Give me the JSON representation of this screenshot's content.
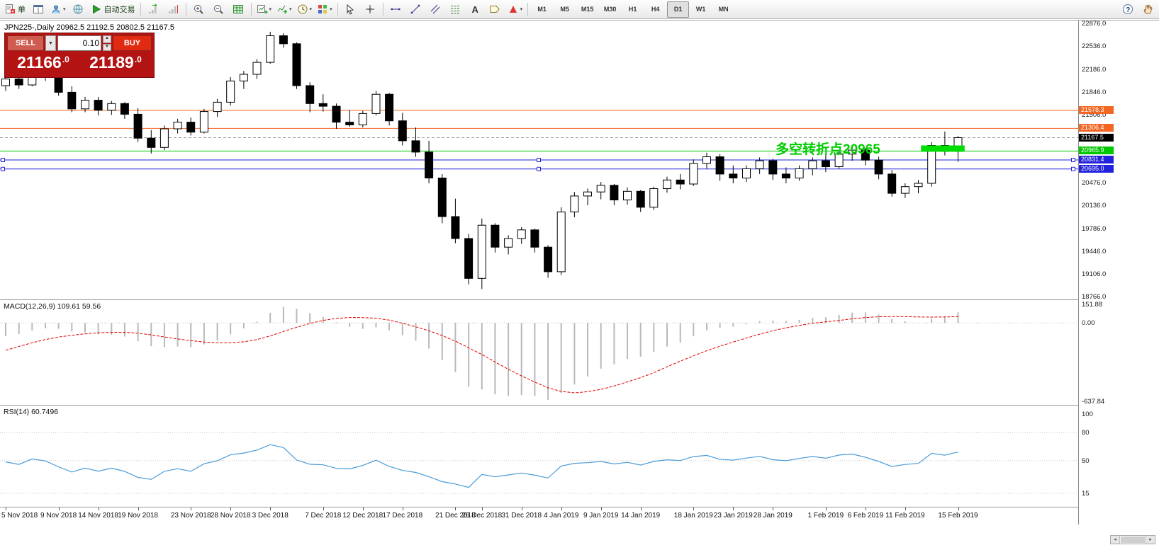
{
  "toolbar": {
    "items": [
      {
        "name": "new-order-button",
        "icon": "doc",
        "label": "单"
      },
      {
        "name": "chart-windows-button",
        "icon": "layout"
      },
      {
        "name": "profile-button",
        "icon": "profile",
        "dropdown": true
      },
      {
        "name": "data-window-button",
        "icon": "globe"
      },
      {
        "name": "autotrading-button",
        "icon": "play",
        "label": "自动交易"
      },
      {
        "sep": true
      },
      {
        "name": "auto-scroll-button",
        "icon": "scroll"
      },
      {
        "name": "chart-shift-button",
        "icon": "shift"
      },
      {
        "sep": true
      },
      {
        "name": "zoom-in-button",
        "icon": "zoomin"
      },
      {
        "name": "zoom-out-button",
        "icon": "zoomout"
      },
      {
        "name": "tile-windows-button",
        "icon": "grid"
      },
      {
        "sep": true
      },
      {
        "name": "new-chart-button",
        "icon": "chartplus",
        "dropdown": true
      },
      {
        "name": "indicators-button",
        "icon": "func",
        "dropdown": true
      },
      {
        "name": "periods-button",
        "icon": "clock",
        "dropdown": true
      },
      {
        "name": "templates-button",
        "icon": "palette",
        "dropdown": true
      },
      {
        "sep": true
      },
      {
        "name": "cursor-button",
        "icon": "cursor"
      },
      {
        "name": "crosshair-button",
        "icon": "crosshair"
      },
      {
        "sep": true
      },
      {
        "name": "horizontal-line-button",
        "icon": "hline"
      },
      {
        "name": "trendline-button",
        "icon": "tline"
      },
      {
        "name": "channel-button",
        "icon": "channel"
      },
      {
        "name": "fibonacci-button",
        "icon": "fibo"
      },
      {
        "name": "text-button",
        "icon": "textA"
      },
      {
        "name": "label-button",
        "icon": "tag"
      },
      {
        "name": "arrows-button",
        "icon": "arrowsym",
        "dropdown": true
      },
      {
        "sep": true
      }
    ],
    "timeframes": [
      "M1",
      "M5",
      "M15",
      "M30",
      "H1",
      "H4",
      "D1",
      "W1",
      "MN"
    ],
    "active_timeframe": "D1",
    "right_items": [
      {
        "name": "help-button",
        "icon": "help"
      },
      {
        "name": "grab-cursor-button",
        "icon": "hand"
      }
    ]
  },
  "chart": {
    "title": "JPN225-,Daily 20962.5 21192.5 20802.5 21167.5",
    "symbol": "JPN225-",
    "period": "Daily"
  },
  "trade_panel": {
    "sell_label": "SELL",
    "buy_label": "BUY",
    "volume": "0.10",
    "sell_price": "21166",
    "sell_frac": ".0",
    "buy_price": "21189",
    "buy_frac": ".0"
  },
  "annotation": {
    "text": "多空转折点20965",
    "color": "#00cc00"
  },
  "y_axis": {
    "max": 22876.0,
    "min": 18766.0,
    "labels": [
      {
        "text": "22876.0",
        "value": 22876.0
      },
      {
        "text": "22536.0",
        "value": 22536.0
      },
      {
        "text": "22186.0",
        "value": 22186.0
      },
      {
        "text": "21846.0",
        "value": 21846.0
      },
      {
        "text": "21506.0",
        "value": 21506.0
      },
      {
        "text": "20476.0",
        "value": 20476.0
      },
      {
        "text": "20136.0",
        "value": 20136.0
      },
      {
        "text": "19786.0",
        "value": 19786.0
      },
      {
        "text": "19446.0",
        "value": 19446.0
      },
      {
        "text": "19106.0",
        "value": 19106.0
      },
      {
        "text": "18766.0",
        "value": 18766.0
      }
    ]
  },
  "x_axis": {
    "ticks": [
      [
        "5 Nov 2018",
        0
      ],
      [
        "9 Nov 2018",
        4
      ],
      [
        "14 Nov 2018",
        7
      ],
      [
        "19 Nov 2018",
        10
      ],
      [
        "23 Nov 2018",
        14
      ],
      [
        "28 Nov 2018",
        17
      ],
      [
        "3 Dec 2018",
        20
      ],
      [
        "7 Dec 2018",
        24
      ],
      [
        "12 Dec 2018",
        27
      ],
      [
        "17 Dec 2018",
        30
      ],
      [
        "21 Dec 2018",
        34
      ],
      [
        "26 Dec 2018",
        36
      ],
      [
        "31 Dec 2018",
        39
      ],
      [
        "4 Jan 2019",
        42
      ],
      [
        "9 Jan 2019",
        45
      ],
      [
        "14 Jan 2019",
        48
      ],
      [
        "18 Jan 2019",
        52
      ],
      [
        "23 Jan 2019",
        55
      ],
      [
        "28 Jan 2019",
        58
      ],
      [
        "1 Feb 2019",
        62
      ],
      [
        "6 Feb 2019",
        65
      ],
      [
        "11 Feb 2019",
        68
      ],
      [
        "15 Feb 2019",
        72
      ]
    ]
  },
  "macd": {
    "label": "MACD(12,26,9) 109.61 59.56",
    "fast": 12,
    "slow": 26,
    "signal": 9,
    "range": [
      -637.84,
      151.88
    ],
    "axis": [
      [
        "151.88",
        151.88
      ],
      [
        "0.00",
        0
      ],
      [
        "-637.84",
        -637.84
      ]
    ]
  },
  "rsi": {
    "label": "RSI(14) 60.7496",
    "period": 14,
    "levels": [
      80,
      50,
      15
    ],
    "axis": [
      [
        "100",
        100
      ],
      [
        "80",
        80
      ],
      [
        "50",
        50
      ],
      [
        "15",
        15
      ]
    ]
  },
  "chart_data": {
    "type": "candlestick",
    "symbol": "JPN225-",
    "timeframe": "Daily",
    "levels": [
      {
        "label": "21578.3",
        "price": 21578.3,
        "color": "#f26522",
        "style": "solid",
        "selected": false
      },
      {
        "label": "21306.4",
        "price": 21306.4,
        "color": "#f26522",
        "style": "solid",
        "selected": false
      },
      {
        "label": "21167.5",
        "price": 21167.5,
        "color": "#000000",
        "style": "dashed",
        "selected": false,
        "role": "bid"
      },
      {
        "label": "20965.9",
        "price": 20965.9,
        "color": "#00c800",
        "style": "solid",
        "selected": false
      },
      {
        "label": "20831.4",
        "price": 20831.4,
        "color": "#2222dd",
        "style": "solid",
        "selected": true
      },
      {
        "label": "20695.0",
        "price": 20695.0,
        "color": "#2222dd",
        "style": "solid",
        "selected": true
      }
    ],
    "rectangle": {
      "from_bar": 69.2,
      "to_bar": 72.5,
      "price_top": 21050,
      "price_bottom": 20955,
      "color": "#00dd00"
    },
    "prehistory_closes": [
      23000,
      22900,
      22800,
      22700,
      22650,
      22600,
      22500,
      22400,
      22350,
      22300,
      22250,
      22150,
      21950,
      21700,
      21450,
      21200,
      21300,
      21450,
      21550,
      21350,
      21250,
      21400,
      21600,
      21800,
      21950,
      22050,
      21920,
      21800,
      21880,
      21960
    ],
    "candles": [
      [
        "2018.11.05",
        21950,
        22120,
        21870,
        22050
      ],
      [
        "2018.11.06",
        22050,
        22090,
        21900,
        21960
      ],
      [
        "2018.11.07",
        21960,
        22200,
        21940,
        22150
      ],
      [
        "2018.11.08",
        22150,
        22210,
        22020,
        22080
      ],
      [
        "2018.11.09",
        22080,
        22100,
        21800,
        21850
      ],
      [
        "2018.11.12",
        21850,
        21940,
        21550,
        21600
      ],
      [
        "2018.11.13",
        21600,
        21780,
        21550,
        21730
      ],
      [
        "2018.11.14",
        21730,
        21780,
        21500,
        21580
      ],
      [
        "2018.11.15",
        21580,
        21720,
        21510,
        21680
      ],
      [
        "2018.11.16",
        21680,
        21700,
        21450,
        21520
      ],
      [
        "2018.11.19",
        21520,
        21610,
        21100,
        21160
      ],
      [
        "2018.11.20",
        21160,
        21280,
        20930,
        21020
      ],
      [
        "2018.11.21",
        21020,
        21350,
        20980,
        21300
      ],
      [
        "2018.11.22",
        21300,
        21450,
        21230,
        21400
      ],
      [
        "2018.11.23",
        21400,
        21470,
        21200,
        21250
      ],
      [
        "2018.11.26",
        21250,
        21600,
        21230,
        21560
      ],
      [
        "2018.11.27",
        21560,
        21750,
        21480,
        21700
      ],
      [
        "2018.11.28",
        21700,
        22080,
        21650,
        22020
      ],
      [
        "2018.11.29",
        22020,
        22170,
        21900,
        22120
      ],
      [
        "2018.11.30",
        22120,
        22350,
        22050,
        22300
      ],
      [
        "2018.12.03",
        22300,
        22760,
        22280,
        22700
      ],
      [
        "2018.12.04",
        22700,
        22740,
        22520,
        22580
      ],
      [
        "2018.12.05",
        22580,
        22600,
        21900,
        21950
      ],
      [
        "2018.12.06",
        21950,
        22000,
        21550,
        21680
      ],
      [
        "2018.12.07",
        21680,
        21820,
        21560,
        21640
      ],
      [
        "2018.12.10",
        21640,
        21680,
        21300,
        21400
      ],
      [
        "2018.12.11",
        21400,
        21580,
        21330,
        21360
      ],
      [
        "2018.12.12",
        21360,
        21570,
        21320,
        21530
      ],
      [
        "2018.12.13",
        21530,
        21870,
        21500,
        21820
      ],
      [
        "2018.12.14",
        21820,
        21840,
        21350,
        21420
      ],
      [
        "2018.12.17",
        21420,
        21540,
        21050,
        21120
      ],
      [
        "2018.12.18",
        21120,
        21320,
        20880,
        20950
      ],
      [
        "2018.12.19",
        20950,
        21120,
        20480,
        20560
      ],
      [
        "2018.12.20",
        20560,
        20620,
        19880,
        19980
      ],
      [
        "2018.12.21",
        19980,
        20250,
        19580,
        19650
      ],
      [
        "2018.12.24",
        19650,
        19720,
        18960,
        19050
      ],
      [
        "2018.12.26",
        19050,
        19950,
        18890,
        19850
      ],
      [
        "2018.12.27",
        19850,
        19880,
        19440,
        19520
      ],
      [
        "2018.12.28",
        19520,
        19700,
        19410,
        19650
      ],
      [
        "2018.12.31",
        19650,
        19820,
        19570,
        19780
      ],
      [
        "2019.01.02",
        19780,
        19800,
        19440,
        19520
      ],
      [
        "2019.01.03",
        19520,
        19550,
        19060,
        19150
      ],
      [
        "2019.01.04",
        19150,
        20120,
        19100,
        20050
      ],
      [
        "2019.01.07",
        20050,
        20350,
        19970,
        20290
      ],
      [
        "2019.01.08",
        20290,
        20400,
        20150,
        20350
      ],
      [
        "2019.01.09",
        20350,
        20500,
        20240,
        20450
      ],
      [
        "2019.01.10",
        20450,
        20470,
        20150,
        20230
      ],
      [
        "2019.01.11",
        20230,
        20420,
        20160,
        20360
      ],
      [
        "2019.01.14",
        20360,
        20380,
        20050,
        20120
      ],
      [
        "2019.01.15",
        20120,
        20430,
        20080,
        20400
      ],
      [
        "2019.01.16",
        20400,
        20580,
        20340,
        20530
      ],
      [
        "2019.01.17",
        20530,
        20620,
        20390,
        20470
      ],
      [
        "2019.01.18",
        20470,
        20840,
        20440,
        20780
      ],
      [
        "2019.01.21",
        20780,
        20940,
        20700,
        20880
      ],
      [
        "2019.01.22",
        20880,
        20920,
        20520,
        20620
      ],
      [
        "2019.01.23",
        20620,
        20750,
        20480,
        20560
      ],
      [
        "2019.01.24",
        20560,
        20750,
        20500,
        20700
      ],
      [
        "2019.01.25",
        20700,
        20870,
        20620,
        20820
      ],
      [
        "2019.01.28",
        20820,
        20850,
        20530,
        20620
      ],
      [
        "2019.01.29",
        20620,
        20720,
        20480,
        20560
      ],
      [
        "2019.01.30",
        20560,
        20750,
        20520,
        20700
      ],
      [
        "2019.01.31",
        20700,
        20870,
        20600,
        20820
      ],
      [
        "2019.02.01",
        20820,
        20930,
        20650,
        20730
      ],
      [
        "2019.02.04",
        20730,
        20960,
        20700,
        20920
      ],
      [
        "2019.02.05",
        20920,
        21020,
        20820,
        20980
      ],
      [
        "2019.02.06",
        20980,
        21010,
        20750,
        20830
      ],
      [
        "2019.02.07",
        20830,
        20880,
        20540,
        20620
      ],
      [
        "2019.02.08",
        20620,
        20680,
        20280,
        20330
      ],
      [
        "2019.02.11",
        20330,
        20480,
        20260,
        20430
      ],
      [
        "2019.02.12",
        20430,
        20530,
        20330,
        20480
      ],
      [
        "2019.02.13",
        20480,
        21100,
        20430,
        21050
      ],
      [
        "2019.02.14",
        21050,
        21260,
        20900,
        20960
      ],
      [
        "2019.02.15",
        20962.5,
        21192.5,
        20802.5,
        21167.5
      ]
    ]
  }
}
